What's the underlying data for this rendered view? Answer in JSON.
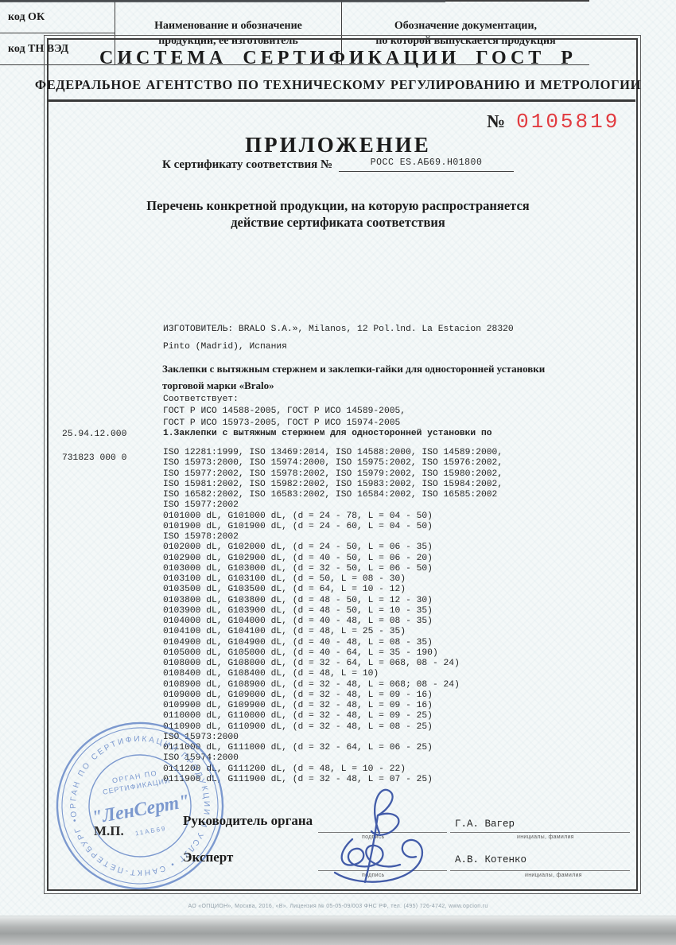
{
  "colors": {
    "number_red": "#e23b40",
    "stamp_blue": "#5b7fc4",
    "signature_blue": "#2f4ba0"
  },
  "header": {
    "system_title": "СИСТЕМА СЕРТИФИКАЦИИ ГОСТ Р",
    "agency": "ФЕДЕРАЛЬНОЕ АГЕНТСТВО ПО ТЕХНИЧЕСКОМУ РЕГУЛИРОВАНИЮ И МЕТРОЛОГИИ",
    "number_sign": "№",
    "number_value": "0105819",
    "doc_title": "ПРИЛОЖЕНИЕ",
    "cert_label": "К сертификату соответствия №",
    "cert_number": "РОСС ES.АБ69.Н01800",
    "subtitle_line1": "Перечень конкретной продукции,  на которую распространяется",
    "subtitle_line2": "действие сертификата соответствия"
  },
  "table": {
    "col1_row1": "код ОК",
    "col1_row2": "код ТН ВЭД",
    "col2_line1": "Наименование и обозначение",
    "col2_line2": "продукции, ее изготовитель",
    "col3_line1": "Обозначение документации,",
    "col3_line2": "по которой выпускается продукция"
  },
  "body": {
    "manufacturer_line1": "ИЗГОТОВИТЕЛЬ: BRALO S.A.», Milanos, 12 Pol.lnd. La Estacion 28320",
    "manufacturer_line2": "Pinto (Madrid), Испания",
    "product_line1": "Заклепки с вытяжным стержнем и заклепки-гайки для односторонней установки",
    "product_line2": "торговой марки «Bralo»",
    "conforms_label": "Соответствует:",
    "gost_line1": "ГОСТ Р ИСО 14588-2005, ГОСТ Р ИСО 14589-2005,",
    "gost_line2": "ГОСТ Р ИСО 15973-2005, ГОСТ Р ИСО 15974-2005",
    "code_ok": "25.94.12.000",
    "item1_title": "1.Заклепки с вытяжным стержнем для односторонней установки по",
    "code_tnved": "731823 000 0",
    "iso_lines": [
      "ISO 12281:1999, ISO 13469:2014, ISO 14588:2000, ISO 14589:2000,",
      "ISO 15973:2000, ISO 15974:2000, ISO 15975:2002, ISO 15976:2002,",
      "ISO 15977:2002, ISO 15978:2002, ISO 15979:2002, ISO 15980:2002,",
      "ISO 15981:2002, ISO 15982:2002, ISO 15983:2002, ISO 15984:2002,",
      "ISO 16582:2002, ISO 16583:2002, ISO 16584:2002, ISO 16585:2002",
      "ISO 15977:2002",
      "0101000 dL, G101000 dL, (d = 24 - 78, L = 04 - 50)",
      "0101900 dL, G101900 dL, (d = 24 - 60, L = 04 - 50)",
      "ISO 15978:2002",
      "0102000 dL, G102000 dL, (d = 24 - 50, L = 06 - 35)",
      "0102900 dL, G102900 dL, (d = 40 - 50, L = 06 - 20)",
      "0103000 dL, G103000 dL, (d = 32 - 50, L = 06 - 50)",
      "0103100 dL, G103100 dL, (d = 50, L = 08 - 30)",
      "0103500 dL, G103500 dL, (d = 64, L = 10 - 12)",
      "0103800 dL, G103800 dL, (d = 48 - 50, L = 12 - 30)",
      "0103900 dL, G103900 dL, (d = 48 - 50, L = 10 - 35)",
      "0104000 dL, G104000 dL, (d = 40 - 48, L = 08 - 35)",
      "0104100 dL, G104100 dL, (d = 48, L = 25 - 35)",
      "0104900 dL, G104900 dL, (d = 40 - 48, L = 08 - 35)",
      "0105000 dL, G105000 dL, (d = 40 - 64, L = 35 - 190)",
      "0108000 dL, G108000 dL, (d = 32 - 64, L = 068, 08 - 24)",
      "0108400 dL, G108400 dL, (d = 48, L = 10)",
      "0108900 dL, G108900 dL, (d = 32 - 48, L = 068; 08 - 24)",
      "0109000 dL, G109000 dL, (d = 32 - 48, L = 09 - 16)",
      "0109900 dL, G109900 dL, (d = 32 - 48, L = 09 - 16)",
      "0110000 dL, G110000 dL, (d = 32 - 48, L = 09 - 25)",
      "0110900 dL, G110900 dL, (d = 32 - 48, L = 08 - 25)",
      "ISO 15973:2000",
      "0111000 dL, G111000 dL, (d = 32 - 64, L = 06 - 25)",
      "ISO 15974:2000",
      "0111200 dL, G111200 dL, (d = 48, L = 10 - 22)",
      "0111900 dL, G111900 dL, (d = 32 - 48, L = 07 - 25)"
    ]
  },
  "signatures": {
    "head_label": "Руководитель органа",
    "head_name": "Г.А. Вагер",
    "expert_label": "Эксперт",
    "expert_name": "А.В. Котенко",
    "sign_caption": "подпись",
    "name_caption": "инициалы, фамилия",
    "stamp_place": "М.П."
  },
  "stamp": {
    "ring_text": "ОРГАН ПО СЕРТИФИКАЦИИ ПРОДУКЦИИ И УСЛУГ  •  САНКТ-ПЕТЕРБУРГ  •",
    "inner_line1": "ОРГАН ПО",
    "inner_line2": "СЕРТИФИКАЦИИ",
    "center_name": "\"ЛенСерт\"",
    "code_text": "11АБ69"
  },
  "footer": {
    "fine_print": "АО «ОПЦИОН», Москва, 2016, «В».  Лицензия № 05-05-09/003 ФНС РФ, тел. (495) 726-4742, www.opcion.ru"
  }
}
